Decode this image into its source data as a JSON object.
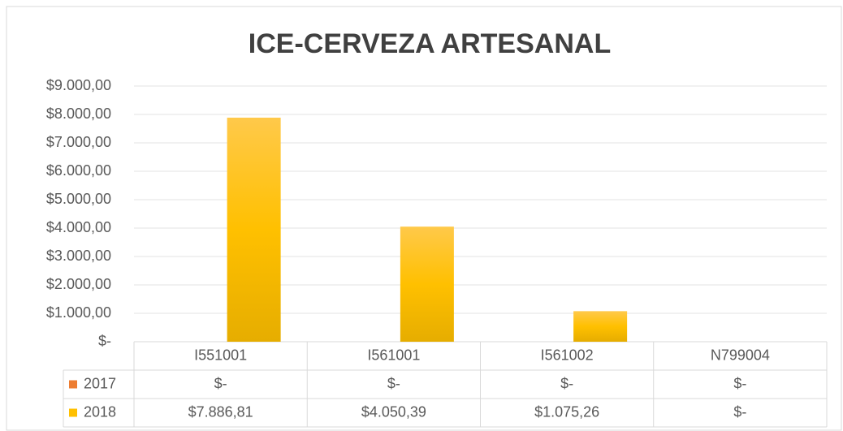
{
  "chart_data": {
    "type": "bar",
    "title": "ICE-CERVEZA ARTESANAL",
    "categories": [
      "I551001",
      "I561001",
      "I561002",
      "N799004"
    ],
    "series": [
      {
        "name": "2017",
        "color": "#ed7d31",
        "values": [
          0,
          0,
          0,
          0
        ],
        "value_labels": [
          "$-",
          "$-",
          "$-",
          "$-"
        ]
      },
      {
        "name": "2018",
        "color": "#ffc000",
        "values": [
          7886.81,
          4050.39,
          1075.26,
          0
        ],
        "value_labels": [
          "$7.886,81",
          "$4.050,39",
          "$1.075,26",
          "$-"
        ]
      }
    ],
    "ylim": [
      0,
      9000
    ],
    "yticks": [
      {
        "value": 0,
        "label": "$-"
      },
      {
        "value": 1000,
        "label": "$1.000,00"
      },
      {
        "value": 2000,
        "label": "$2.000,00"
      },
      {
        "value": 3000,
        "label": "$3.000,00"
      },
      {
        "value": 4000,
        "label": "$4.000,00"
      },
      {
        "value": 5000,
        "label": "$5.000,00"
      },
      {
        "value": 6000,
        "label": "$6.000,00"
      },
      {
        "value": 7000,
        "label": "$7.000,00"
      },
      {
        "value": 8000,
        "label": "$8.000,00"
      },
      {
        "value": 9000,
        "label": "$9.000,00"
      }
    ],
    "grid": true
  }
}
